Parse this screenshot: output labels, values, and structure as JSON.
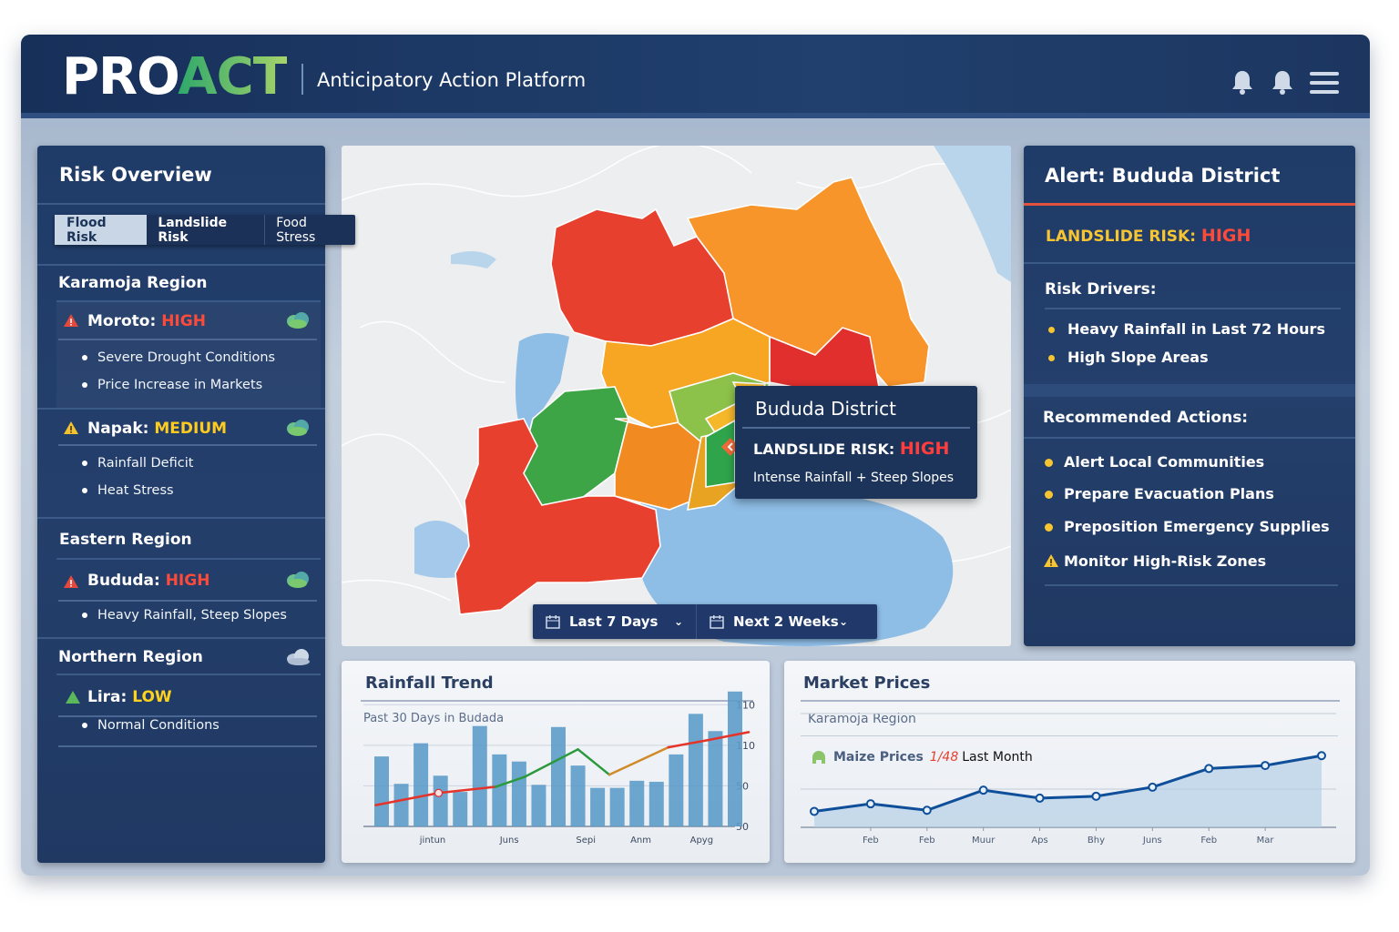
{
  "header": {
    "logo_pro": "PRO",
    "logo_act": "ACT",
    "subtitle": "Anticipatory Action Platform"
  },
  "colors": {
    "high": "#ff4a3a",
    "medium": "#ffcb1f",
    "low": "#ffd21f",
    "navy": "#1f3b68",
    "accent_green": "#39b37a"
  },
  "left": {
    "title": "Risk Overview",
    "tabs": [
      {
        "label": "Flood Risk",
        "active": true
      },
      {
        "label": "Landslide Risk",
        "active": false
      },
      {
        "label": "Food Stress",
        "active": false
      }
    ],
    "regions": [
      {
        "name": "Karamoja Region",
        "items": [
          {
            "district": "Moroto: ",
            "level": "HIGH",
            "bullets": [
              "Severe Drought Conditions",
              "Price Increase in Markets"
            ]
          },
          {
            "district": "Napak: ",
            "level": "MEDIUM",
            "bullets": [
              "Rainfall Deficit",
              "Heat Stress"
            ]
          }
        ]
      },
      {
        "name": "Eastern Region",
        "items": [
          {
            "district": "Bududa: ",
            "level": "HIGH",
            "bullets": [
              "Heavy Rainfall, Steep Slopes"
            ]
          }
        ]
      },
      {
        "name": "Northern Region",
        "items": [
          {
            "district": "Lira: ",
            "level": "LOW",
            "bullets": [
              "Normal Conditions"
            ]
          }
        ]
      }
    ]
  },
  "map": {
    "tooltip": {
      "title": "Bududa District",
      "risk_label": "LANDSLIDE RISK: ",
      "risk_level": "HIGH",
      "detail": "Intense Rainfall + Steep Slopes"
    },
    "date_filters": [
      "Last 7 Days",
      "Next 2 Weeks"
    ]
  },
  "alert": {
    "title": "Alert: Bududa District",
    "risk_label": "LANDSLIDE RISK: ",
    "risk_level": "HIGH",
    "drivers_title": "Risk Drivers:",
    "drivers": [
      "Heavy Rainfall in Last 72 Hours",
      "High Slope Areas"
    ],
    "actions_title": "Recommended Actions:",
    "actions": [
      "Alert Local Communities",
      "Prepare Evacuation Plans",
      "Preposition Emergency Supplies",
      "Monitor High-Risk Zones"
    ]
  },
  "chart_data": [
    {
      "type": "bar",
      "title": "Rainfall Trend",
      "subtitle": "Past 30 Days in Budada",
      "values": [
        69,
        42,
        82,
        50,
        34,
        99,
        71,
        64,
        41,
        98,
        60,
        38,
        38,
        45,
        44,
        71,
        111,
        94,
        133
      ],
      "trend": [
        [
          -0.3,
          21
        ],
        [
          2.9,
          33
        ],
        [
          5.8,
          39
        ],
        [
          7.3,
          49
        ],
        [
          10,
          76
        ],
        [
          11.6,
          51
        ],
        [
          14.6,
          78
        ],
        [
          16.6,
          85
        ],
        [
          18.7,
          93
        ]
      ],
      "xtick_labels": [
        {
          "at": 2.6,
          "label": "jintun"
        },
        {
          "at": 6.5,
          "label": "Juns"
        },
        {
          "at": 10.4,
          "label": "Sepi"
        },
        {
          "at": 13.2,
          "label": "Anm"
        },
        {
          "at": 16.3,
          "label": "Apyg"
        }
      ],
      "ytick_labels": [
        "50",
        "50",
        "110",
        "110"
      ],
      "ylim": [
        0,
        140
      ],
      "grid": true,
      "bar_color": "#5d9cc9",
      "trend_colors": [
        "#e63329",
        "#2a9a3d",
        "#e63329"
      ]
    },
    {
      "type": "area",
      "title": "Market Prices",
      "subtitle": "Karamoja Region",
      "legend": {
        "label": "Maize Prices",
        "change": "1/48",
        "period": "Last Month"
      },
      "categories": [
        "",
        "Feb",
        "Feb",
        "Muur",
        "Aps",
        "Bhy",
        "Juns",
        "Feb",
        "Mar",
        ""
      ],
      "values": [
        42,
        62,
        45,
        98,
        77,
        82,
        106,
        155,
        163,
        189
      ],
      "ylim": [
        0,
        240
      ],
      "grid": true,
      "line_color": "#0f4f9a"
    }
  ]
}
